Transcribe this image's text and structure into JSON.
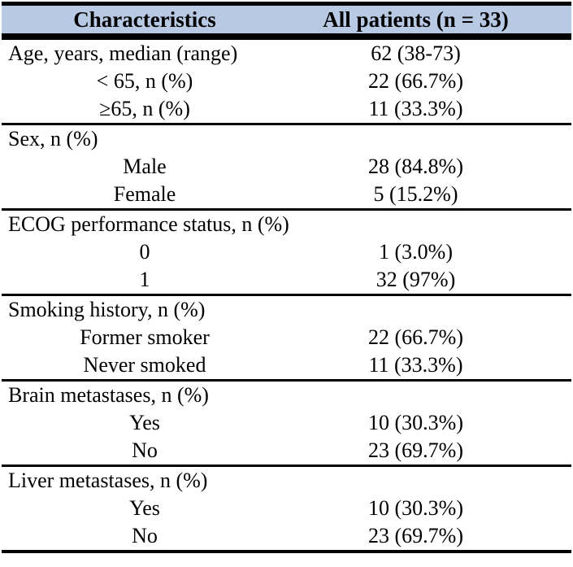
{
  "table": {
    "header": {
      "characteristics": "Characteristics",
      "all_patients": "All patients (n = 33)"
    },
    "colors": {
      "header_bg": "#b8c9e4",
      "rule": "#000000",
      "text": "#000000"
    },
    "sections": [
      {
        "name": "age",
        "rows": [
          {
            "label": "Age, years, median (range)",
            "value": "62 (38-73)"
          },
          {
            "label": "< 65, n (%)",
            "value": "22 (66.7%)"
          },
          {
            "label": "≥65, n (%)",
            "value": "11 (33.3%)"
          }
        ]
      },
      {
        "name": "sex",
        "rows": [
          {
            "label": "Sex, n (%)",
            "value": ""
          },
          {
            "label": "Male",
            "value": "28 (84.8%)"
          },
          {
            "label": "Female",
            "value": "5 (15.2%)"
          }
        ]
      },
      {
        "name": "ecog",
        "rows": [
          {
            "label": "ECOG performance status, n (%)",
            "value": ""
          },
          {
            "label": "0",
            "value": "1 (3.0%)"
          },
          {
            "label": "1",
            "value": "32 (97%)"
          }
        ]
      },
      {
        "name": "smoking",
        "rows": [
          {
            "label": "Smoking history, n (%)",
            "value": ""
          },
          {
            "label": "Former smoker",
            "value": "22 (66.7%)"
          },
          {
            "label": "Never smoked",
            "value": "11 (33.3%)"
          }
        ]
      },
      {
        "name": "brain-metastases",
        "rows": [
          {
            "label": "Brain metastases, n (%)",
            "value": ""
          },
          {
            "label": "Yes",
            "value": "10 (30.3%)"
          },
          {
            "label": "No",
            "value": "23 (69.7%)"
          }
        ]
      },
      {
        "name": "liver-metastases",
        "rows": [
          {
            "label": "Liver metastases, n (%)",
            "value": ""
          },
          {
            "label": "Yes",
            "value": "10 (30.3%)"
          },
          {
            "label": "No",
            "value": "23 (69.7%)"
          }
        ]
      }
    ]
  }
}
